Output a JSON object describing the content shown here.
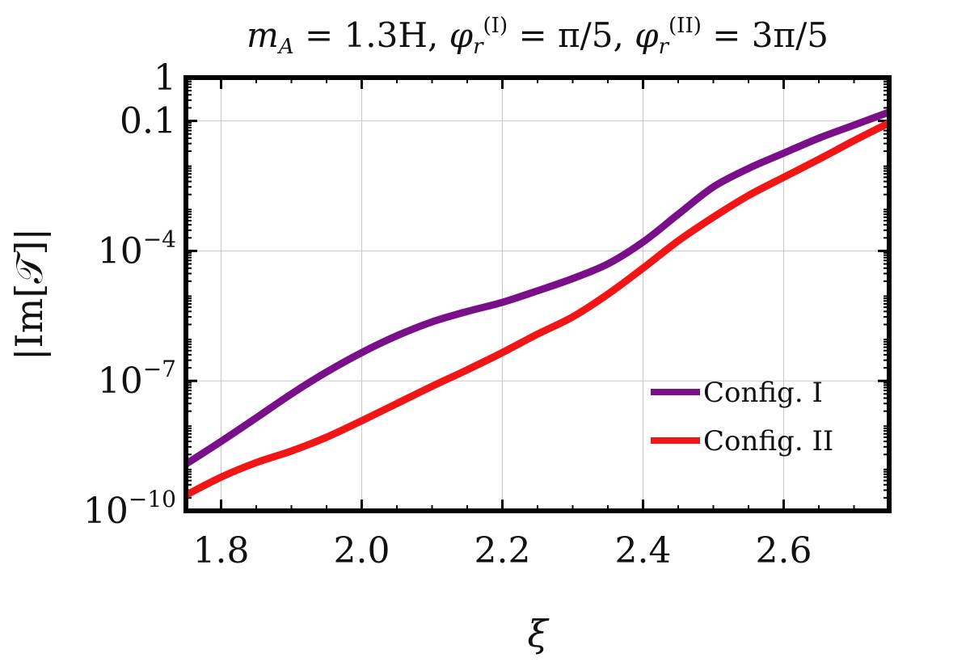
{
  "chart_data": {
    "type": "line",
    "title": {
      "m_sym": "m",
      "m_sub": "A",
      "m_val": " = 1.3H, ",
      "phi1_sym": "φ",
      "phi1_sub": "r",
      "phi1_sup": "(I)",
      "phi1_val": " = π/5, ",
      "phi2_sym": "φ",
      "phi2_sub": "r",
      "phi2_sup": "(II)",
      "phi2_val": " = 3π/5"
    },
    "xlabel": "ξ",
    "ylabel": "|Im[𝒯]|",
    "xlim": [
      1.75,
      2.75
    ],
    "ylim": [
      1e-10,
      1
    ],
    "yscale": "log",
    "grid": true,
    "legend_position": "bottom-right",
    "x_ticks": [
      "1.8",
      "2.0",
      "2.2",
      "2.4",
      "2.6"
    ],
    "y_ticks": [
      {
        "label": "1",
        "value": 1
      },
      {
        "label": "0.1",
        "value": 0.1
      },
      {
        "mantissa": "10",
        "exp": "−4",
        "value": 0.0001
      },
      {
        "mantissa": "10",
        "exp": "−7",
        "value": 1e-07
      },
      {
        "mantissa": "10",
        "exp": "−10",
        "value": 1e-10
      }
    ],
    "series": [
      {
        "name": "Config. I",
        "color": "#7a0f8a",
        "legend_text_color": "#9a3ee0",
        "x": [
          1.75,
          1.8,
          1.85,
          1.9,
          1.95,
          2.0,
          2.05,
          2.1,
          2.15,
          2.2,
          2.25,
          2.3,
          2.35,
          2.4,
          2.45,
          2.5,
          2.55,
          2.6,
          2.65,
          2.7,
          2.75
        ],
        "y": [
          1.2e-09,
          4e-09,
          1.4e-08,
          5e-08,
          1.6e-07,
          4.5e-07,
          1.1e-06,
          2.3e-06,
          4e-06,
          6.5e-06,
          1.2e-05,
          2.3e-05,
          5e-05,
          0.00016,
          0.0007,
          0.003,
          0.008,
          0.018,
          0.04,
          0.08,
          0.16
        ]
      },
      {
        "name": "Config. II",
        "color": "#f21515",
        "legend_text_color": "#f21515",
        "x": [
          1.75,
          1.8,
          1.85,
          1.9,
          1.95,
          2.0,
          2.05,
          2.1,
          2.15,
          2.2,
          2.25,
          2.3,
          2.35,
          2.4,
          2.45,
          2.5,
          2.55,
          2.6,
          2.65,
          2.7,
          2.75
        ],
        "y": [
          2.3e-10,
          6e-10,
          1.3e-09,
          2.4e-09,
          5e-09,
          1.2e-08,
          3e-08,
          7.5e-08,
          1.8e-07,
          4.5e-07,
          1.2e-06,
          3e-06,
          1e-05,
          4e-05,
          0.00017,
          0.0006,
          0.0019,
          0.005,
          0.013,
          0.035,
          0.09
        ]
      }
    ]
  }
}
